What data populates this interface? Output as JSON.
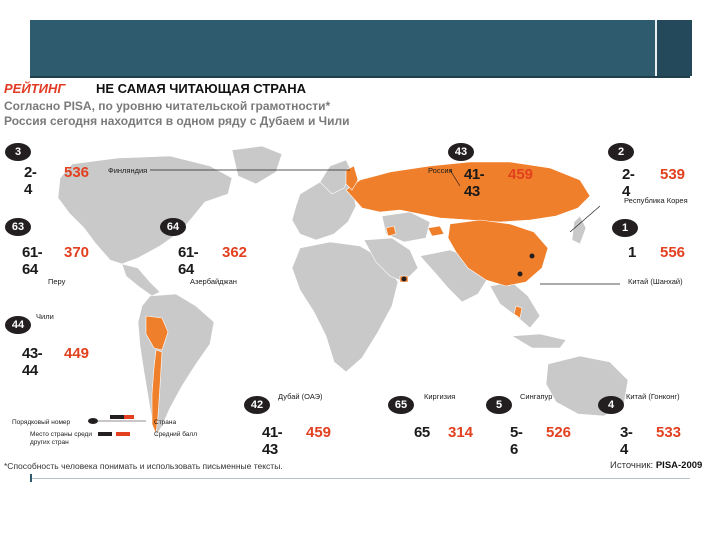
{
  "header": {
    "rating": "РЕЙТИНГ",
    "title": "НЕ САМАЯ ЧИТАЮЩАЯ СТРАНА",
    "subtitle_line1": "Согласно PISA, по уровню читательской грамотности*",
    "subtitle_line2": "Россия сегодня находится в одном ряду с Дубаем и Чили"
  },
  "colors": {
    "highlight": "#f07f2b",
    "map": "#c9c9c9",
    "score": "#e2401f",
    "header_bar": "#2f5b6f"
  },
  "chart_data": {
    "type": "table",
    "title": "НЕ САМАЯ ЧИТАЮЩАЯ СТРАНА",
    "columns": [
      "Страна",
      "Порядковый номер",
      "Место страны среди других стран",
      "Средний балл"
    ],
    "rows": [
      {
        "country": "Финляндия",
        "number": "3",
        "place": "2-4",
        "score": 536
      },
      {
        "country": "Россия",
        "number": "43",
        "place": "41-43",
        "score": 459
      },
      {
        "country": "Республика Корея",
        "number": "2",
        "place": "2-4",
        "score": 539
      },
      {
        "country": "Перу",
        "number": "63",
        "place": "61-64",
        "score": 370
      },
      {
        "country": "Азербайджан",
        "number": "64",
        "place": "61-64",
        "score": 362
      },
      {
        "country": "Китай (Шанхай)",
        "number": "1",
        "place": "1",
        "score": 556
      },
      {
        "country": "Чили",
        "number": "44",
        "place": "43-44",
        "score": 449
      },
      {
        "country": "Дубай (ОАЭ)",
        "number": "42",
        "place": "41-43",
        "score": 459
      },
      {
        "country": "Киргизия",
        "number": "65",
        "place": "65",
        "score": 314
      },
      {
        "country": "Сингапур",
        "number": "5",
        "place": "5-6",
        "score": 526
      },
      {
        "country": "Китай (Гонконг)",
        "number": "4",
        "place": "3-4",
        "score": 533
      }
    ]
  },
  "legend": {
    "number": "Порядковый номер",
    "place": "Место страны среди других стран",
    "country": "Страна",
    "score": "Средний балл"
  },
  "footnote": "*Способность человека понимать и использовать письменные тексты.",
  "source_label": "Источник:",
  "source_value": "PISA-2009"
}
